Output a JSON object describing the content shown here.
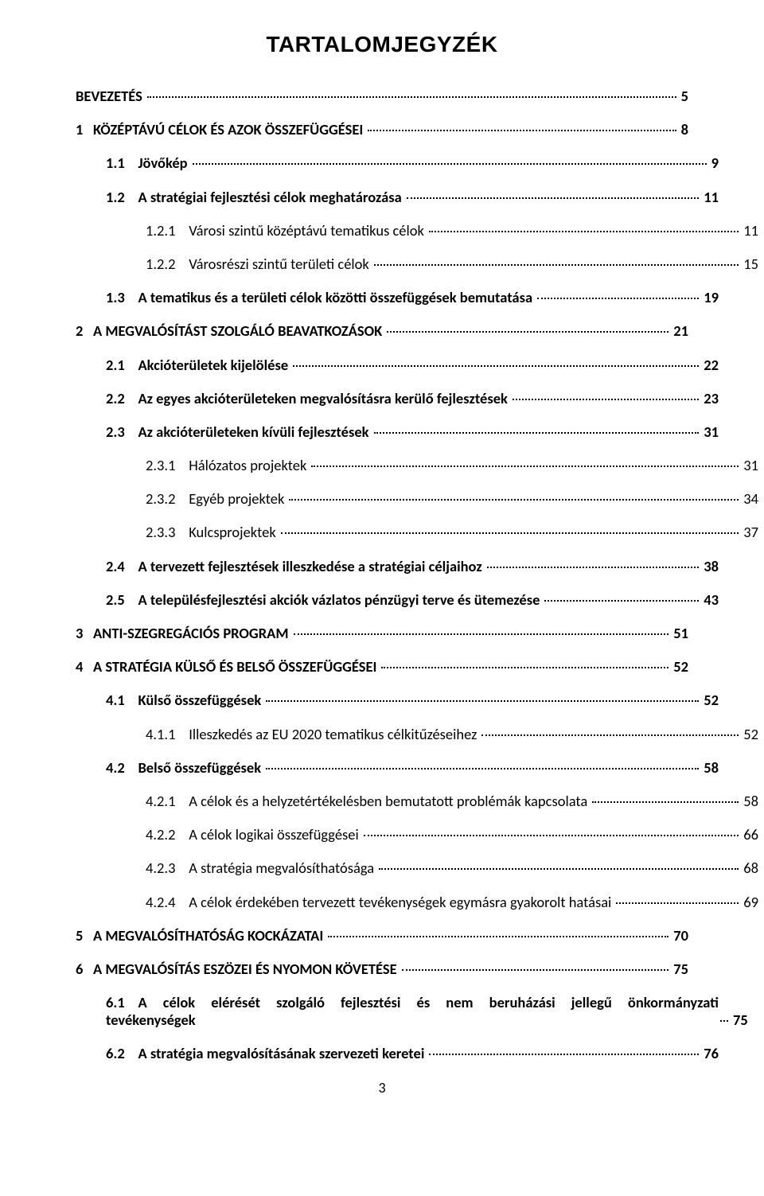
{
  "title": "TARTALOMJEGYZÉK",
  "page_number": "3",
  "entries": [
    {
      "num": "",
      "text": "BEVEZETÉS",
      "page": "5",
      "level": 0,
      "bold": true
    },
    {
      "num": "1",
      "text": "KÖZÉPTÁVÚ CÉLOK ÉS AZOK ÖSSZEFÜGGÉSEI",
      "page": "8",
      "level": 0,
      "bold": true
    },
    {
      "num": "1.1",
      "text": "Jövőkép",
      "page": "9",
      "level": 1,
      "bold": true
    },
    {
      "num": "1.2",
      "text": "A stratégiai fejlesztési célok meghatározása",
      "page": "11",
      "level": 1,
      "bold": true
    },
    {
      "num": "1.2.1",
      "text": "Városi szintű középtávú tematikus célok",
      "page": "11",
      "level": 2,
      "bold": false
    },
    {
      "num": "1.2.2",
      "text": "Városrészi szintű területi célok",
      "page": "15",
      "level": 2,
      "bold": false
    },
    {
      "num": "1.3",
      "text": "A tematikus és a területi célok közötti összefüggések bemutatása",
      "page": "19",
      "level": 1,
      "bold": true
    },
    {
      "num": "2",
      "text": "A MEGVALÓSÍTÁST SZOLGÁLÓ BEAVATKOZÁSOK",
      "page": "21",
      "level": 0,
      "bold": true
    },
    {
      "num": "2.1",
      "text": "Akcióterületek kijelölése",
      "page": "22",
      "level": 1,
      "bold": true
    },
    {
      "num": "2.2",
      "text": "Az egyes akcióterületeken megvalósításra kerülő fejlesztések",
      "page": "23",
      "level": 1,
      "bold": true
    },
    {
      "num": "2.3",
      "text": "Az akcióterületeken kívüli fejlesztések",
      "page": "31",
      "level": 1,
      "bold": true
    },
    {
      "num": "2.3.1",
      "text": "Hálózatos projektek",
      "page": "31",
      "level": 2,
      "bold": false
    },
    {
      "num": "2.3.2",
      "text": "Egyéb projektek",
      "page": "34",
      "level": 2,
      "bold": false
    },
    {
      "num": "2.3.3",
      "text": "Kulcsprojektek",
      "page": "37",
      "level": 2,
      "bold": false
    },
    {
      "num": "2.4",
      "text": "A tervezett fejlesztések illeszkedése a stratégiai céljaihoz",
      "page": "38",
      "level": 1,
      "bold": true
    },
    {
      "num": "2.5",
      "text": "A településfejlesztési akciók vázlatos pénzügyi terve és ütemezése",
      "page": "43",
      "level": 1,
      "bold": true
    },
    {
      "num": "3",
      "text": "ANTI-SZEGREGÁCIÓS PROGRAM",
      "page": "51",
      "level": 0,
      "bold": true
    },
    {
      "num": "4",
      "text": "A STRATÉGIA KÜLSŐ ÉS BELSŐ ÖSSZEFÜGGÉSEI",
      "page": "52",
      "level": 0,
      "bold": true
    },
    {
      "num": "4.1",
      "text": "Külső összefüggések",
      "page": "52",
      "level": 1,
      "bold": true
    },
    {
      "num": "4.1.1",
      "text": "Illeszkedés az EU 2020 tematikus célkitűzéseihez",
      "page": "52",
      "level": 2,
      "bold": false
    },
    {
      "num": "4.2",
      "text": "Belső összefüggések",
      "page": "58",
      "level": 1,
      "bold": true
    },
    {
      "num": "4.2.1",
      "text": "A célok és a helyzetértékelésben bemutatott problémák kapcsolata",
      "page": "58",
      "level": 2,
      "bold": false
    },
    {
      "num": "4.2.2",
      "text": "A célok logikai összefüggései",
      "page": "66",
      "level": 2,
      "bold": false
    },
    {
      "num": "4.2.3",
      "text": "A stratégia megvalósíthatósága",
      "page": "68",
      "level": 2,
      "bold": false
    },
    {
      "num": "4.2.4",
      "text": "A célok érdekében tervezett tevékenységek egymásra gyakorolt hatásai",
      "page": "69",
      "level": 2,
      "bold": false
    },
    {
      "num": "5",
      "text": "A MEGVALÓSÍTHATÓSÁG KOCKÁZATAI",
      "page": "70",
      "level": 0,
      "bold": true
    },
    {
      "num": "6",
      "text": "A MEGVALÓSÍTÁS ESZÖZEI ÉS NYOMON KÖVETÉSE",
      "page": "75",
      "level": 0,
      "bold": true
    },
    {
      "num": "6.1",
      "text_line1": "A célok elérését szolgáló fejlesztési és nem beruházási jellegű önkormányzati",
      "text_line2": "tevékenységek",
      "page": "75",
      "level": 1,
      "bold": true,
      "multiline": true
    },
    {
      "num": "6.2",
      "text": "A stratégia megvalósításának szervezeti keretei",
      "page": "76",
      "level": 1,
      "bold": true
    }
  ]
}
